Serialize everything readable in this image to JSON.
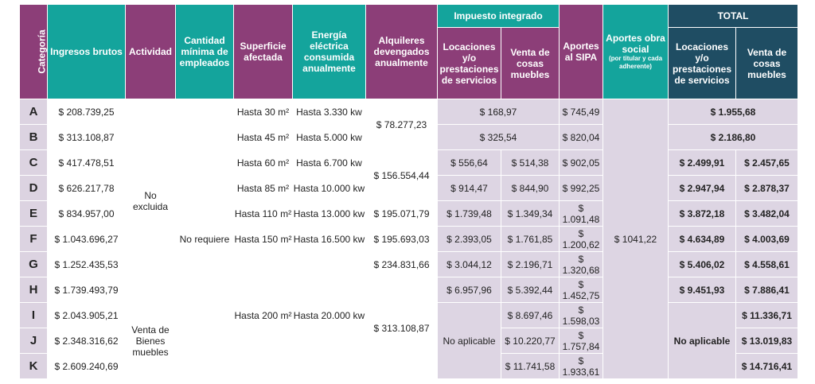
{
  "headers": {
    "categoria": "Categoría",
    "ingresos": "Ingresos brutos",
    "actividad": "Actividad",
    "empleados": "Cantidad mínima de empleados",
    "superficie": "Superficie afectada",
    "energia": "Energía eléctrica consumida anualmente",
    "alquileres": "Alquileres devengados anualmente",
    "impuesto_group": "Impuesto integrado",
    "imp_locaciones": "Locaciones y/o prestaciones de servicios",
    "imp_venta": "Venta de cosas muebles",
    "sipa": "Aportes al SIPA",
    "obra_social": "Aportes obra social",
    "obra_social_note": "(por titular y cada adherente)",
    "total_group": "TOTAL",
    "tot_locaciones": "Locaciones y/o prestaciones de servicios",
    "tot_venta": "Venta de cosas muebles"
  },
  "rows": [
    {
      "cat": "A",
      "ingresos": "$ 208.739,25",
      "superficie": "Hasta 30 m²",
      "energia": "Hasta 3.330 kw",
      "imp": "$ 168,97",
      "sipa": "$ 745,49",
      "total": "$ 1.955,68"
    },
    {
      "cat": "B",
      "ingresos": "$ 313.108,87",
      "superficie": "Hasta 45 m²",
      "energia": "Hasta 5.000 kw",
      "imp": "$ 325,54",
      "sipa": "$ 820,04",
      "total": "$ 2.186,80"
    },
    {
      "cat": "C",
      "ingresos": "$ 417.478,51",
      "superficie": "Hasta 60 m²",
      "energia": "Hasta 6.700 kw",
      "imp_loc": "$ 556,64",
      "imp_venta": "$ 514,38",
      "sipa": "$ 902,05",
      "tot_loc": "$ 2.499,91",
      "tot_venta": "$ 2.457,65"
    },
    {
      "cat": "D",
      "ingresos": "$ 626.217,78",
      "superficie": "Hasta 85 m²",
      "energia": "Hasta 10.000 kw",
      "imp_loc": "$ 914,47",
      "imp_venta": "$ 844,90",
      "sipa": "$ 992,25",
      "tot_loc": "$ 2.947,94",
      "tot_venta": "$ 2.878,37"
    },
    {
      "cat": "E",
      "ingresos": "$ 834.957,00",
      "superficie": "Hasta 110 m²",
      "energia": "Hasta 13.000 kw",
      "alquileres": "$ 195.071,79",
      "imp_loc": "$ 1.739,48",
      "imp_venta": "$ 1.349,34",
      "sipa": "$ 1.091,48",
      "tot_loc": "$ 3.872,18",
      "tot_venta": "$ 3.482,04"
    },
    {
      "cat": "F",
      "ingresos": "$ 1.043.696,27",
      "superficie": "Hasta 150 m²",
      "energia": "Hasta 16.500 kw",
      "alquileres": "$ 195.693,03",
      "imp_loc": "$ 2.393,05",
      "imp_venta": "$ 1.761,85",
      "sipa": "$ 1.200,62",
      "tot_loc": "$ 4.634,89",
      "tot_venta": "$ 4.003,69"
    },
    {
      "cat": "G",
      "ingresos": "$ 1.252.435,53",
      "alquileres": "$ 234.831,66",
      "imp_loc": "$ 3.044,12",
      "imp_venta": "$ 2.196,71",
      "sipa": "$ 1.320,68",
      "tot_loc": "$ 5.406,02",
      "tot_venta": "$ 4.558,61"
    },
    {
      "cat": "H",
      "ingresos": "$ 1.739.493,79",
      "imp_loc": "$ 6.957,96",
      "imp_venta": "$ 5.392,44",
      "sipa": "$ 1.452,75",
      "tot_loc": "$ 9.451,93",
      "tot_venta": "$ 7.886,41"
    },
    {
      "cat": "I",
      "ingresos": "$ 2.043.905,21",
      "imp_venta": "$ 8.697,46",
      "sipa": "$ 1.598,03",
      "tot_venta": "$ 11.336,71"
    },
    {
      "cat": "J",
      "ingresos": "$ 2.348.316,62",
      "imp_venta": "$ 10.220,77",
      "sipa": "$ 1.757,84",
      "tot_venta": "$ 13.019,83"
    },
    {
      "cat": "K",
      "ingresos": "$ 2.609.240,69",
      "imp_venta": "$ 11.741,58",
      "sipa": "$ 1.933,61",
      "tot_venta": "$ 14.716,41"
    }
  ],
  "merged": {
    "actividad_1": "No excluida",
    "actividad_2": "Venta de Bienes muebles",
    "empleados": "No requiere",
    "superficie_g_k": "Hasta 200 m²",
    "energia_g_k": "Hasta 20.000 kw",
    "alquileres_a_b": "$ 78.277,23",
    "alquileres_c_d": "$ 156.554,44",
    "alquileres_h_k": "$ 313.108,87",
    "obra_social": "$ 1041,22",
    "imp_no_aplicable": "No aplicable",
    "tot_no_aplicable": "No aplicable"
  },
  "colors": {
    "purple_header": "#8c3e78",
    "teal_header": "#14a49c",
    "navy_header": "#1f4d63",
    "lavender_cell": "#ddd5e3"
  }
}
